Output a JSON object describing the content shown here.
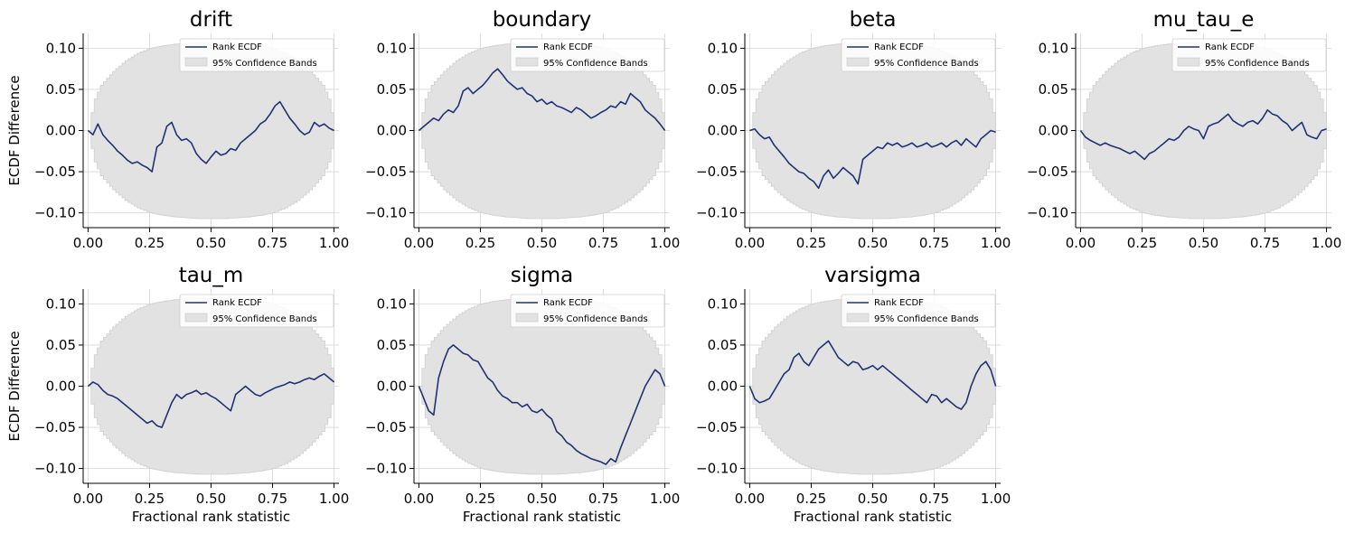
{
  "chart_data": {
    "type": "line",
    "shared": {
      "xlim": [
        -0.02,
        1.02
      ],
      "ylim": [
        -0.118,
        0.118
      ],
      "xticks": [
        0.0,
        0.25,
        0.5,
        0.75,
        1.0
      ],
      "xtick_labels": [
        "0.00",
        "0.25",
        "0.50",
        "0.75",
        "1.00"
      ],
      "yticks": [
        -0.1,
        -0.05,
        0.0,
        0.05,
        0.1
      ],
      "ytick_labels": [
        "−0.10",
        "−0.05",
        "0.00",
        "0.05",
        "0.10"
      ],
      "grid": true,
      "legend_position": "top-right",
      "legend_line_label": "Rank ECDF",
      "legend_band_label": "95% Confidence Bands",
      "line_color": "#1f3374",
      "band_color": "#e2e2e2",
      "confidence_band_halfwidth": [
        [
          0.0,
          0.0
        ],
        [
          0.02,
          0.035
        ],
        [
          0.05,
          0.055
        ],
        [
          0.1,
          0.072
        ],
        [
          0.15,
          0.085
        ],
        [
          0.2,
          0.094
        ],
        [
          0.25,
          0.1
        ],
        [
          0.3,
          0.103
        ],
        [
          0.35,
          0.105
        ],
        [
          0.4,
          0.106
        ],
        [
          0.45,
          0.107
        ],
        [
          0.5,
          0.107
        ],
        [
          0.55,
          0.107
        ],
        [
          0.6,
          0.106
        ],
        [
          0.65,
          0.105
        ],
        [
          0.7,
          0.103
        ],
        [
          0.75,
          0.1
        ],
        [
          0.8,
          0.094
        ],
        [
          0.85,
          0.085
        ],
        [
          0.9,
          0.072
        ],
        [
          0.95,
          0.055
        ],
        [
          0.98,
          0.035
        ],
        [
          1.0,
          0.0
        ]
      ]
    },
    "panels": [
      {
        "title": "drift",
        "ylabel": "ECDF Difference",
        "xlabel": "",
        "x": [
          0.0,
          0.02,
          0.04,
          0.06,
          0.08,
          0.1,
          0.12,
          0.14,
          0.16,
          0.18,
          0.2,
          0.22,
          0.24,
          0.26,
          0.28,
          0.3,
          0.32,
          0.34,
          0.36,
          0.38,
          0.4,
          0.42,
          0.44,
          0.46,
          0.48,
          0.5,
          0.52,
          0.54,
          0.56,
          0.58,
          0.6,
          0.62,
          0.64,
          0.66,
          0.68,
          0.7,
          0.72,
          0.74,
          0.76,
          0.78,
          0.8,
          0.82,
          0.84,
          0.86,
          0.88,
          0.9,
          0.92,
          0.94,
          0.96,
          0.98,
          1.0
        ],
        "y": [
          0.0,
          -0.005,
          0.008,
          -0.005,
          -0.012,
          -0.018,
          -0.025,
          -0.03,
          -0.036,
          -0.04,
          -0.038,
          -0.042,
          -0.045,
          -0.05,
          -0.02,
          -0.015,
          0.005,
          0.01,
          -0.005,
          -0.012,
          -0.01,
          -0.015,
          -0.028,
          -0.035,
          -0.04,
          -0.032,
          -0.025,
          -0.03,
          -0.028,
          -0.022,
          -0.024,
          -0.015,
          -0.01,
          -0.005,
          0.0,
          0.008,
          0.012,
          0.02,
          0.03,
          0.035,
          0.025,
          0.015,
          0.008,
          0.0,
          -0.005,
          -0.002,
          0.01,
          0.005,
          0.008,
          0.003,
          0.0
        ]
      },
      {
        "title": "boundary",
        "ylabel": "",
        "xlabel": "",
        "x": [
          0.0,
          0.02,
          0.04,
          0.06,
          0.08,
          0.1,
          0.12,
          0.14,
          0.16,
          0.18,
          0.2,
          0.22,
          0.24,
          0.26,
          0.28,
          0.3,
          0.32,
          0.34,
          0.36,
          0.38,
          0.4,
          0.42,
          0.44,
          0.46,
          0.48,
          0.5,
          0.52,
          0.54,
          0.56,
          0.58,
          0.6,
          0.62,
          0.64,
          0.66,
          0.68,
          0.7,
          0.72,
          0.74,
          0.76,
          0.78,
          0.8,
          0.82,
          0.84,
          0.86,
          0.88,
          0.9,
          0.92,
          0.94,
          0.96,
          0.98,
          1.0
        ],
        "y": [
          0.0,
          0.005,
          0.01,
          0.015,
          0.012,
          0.02,
          0.025,
          0.022,
          0.03,
          0.048,
          0.052,
          0.045,
          0.05,
          0.055,
          0.062,
          0.07,
          0.075,
          0.068,
          0.06,
          0.055,
          0.05,
          0.052,
          0.045,
          0.042,
          0.035,
          0.038,
          0.032,
          0.035,
          0.03,
          0.028,
          0.025,
          0.022,
          0.028,
          0.025,
          0.02,
          0.015,
          0.018,
          0.022,
          0.025,
          0.03,
          0.028,
          0.035,
          0.032,
          0.045,
          0.04,
          0.035,
          0.025,
          0.02,
          0.015,
          0.008,
          0.0
        ]
      },
      {
        "title": "beta",
        "ylabel": "",
        "xlabel": "",
        "x": [
          0.0,
          0.02,
          0.04,
          0.06,
          0.08,
          0.1,
          0.12,
          0.14,
          0.16,
          0.18,
          0.2,
          0.22,
          0.24,
          0.26,
          0.28,
          0.3,
          0.32,
          0.34,
          0.36,
          0.38,
          0.4,
          0.42,
          0.44,
          0.46,
          0.48,
          0.5,
          0.52,
          0.54,
          0.56,
          0.58,
          0.6,
          0.62,
          0.64,
          0.66,
          0.68,
          0.7,
          0.72,
          0.74,
          0.76,
          0.78,
          0.8,
          0.82,
          0.84,
          0.86,
          0.88,
          0.9,
          0.92,
          0.94,
          0.96,
          0.98,
          1.0
        ],
        "y": [
          0.0,
          0.002,
          -0.005,
          -0.01,
          -0.008,
          -0.018,
          -0.025,
          -0.032,
          -0.04,
          -0.045,
          -0.05,
          -0.052,
          -0.058,
          -0.062,
          -0.07,
          -0.055,
          -0.048,
          -0.058,
          -0.052,
          -0.045,
          -0.05,
          -0.055,
          -0.065,
          -0.035,
          -0.03,
          -0.025,
          -0.02,
          -0.022,
          -0.015,
          -0.018,
          -0.015,
          -0.02,
          -0.018,
          -0.015,
          -0.02,
          -0.018,
          -0.015,
          -0.02,
          -0.018,
          -0.015,
          -0.02,
          -0.015,
          -0.012,
          -0.018,
          -0.01,
          -0.015,
          -0.02,
          -0.01,
          -0.005,
          0.0,
          -0.002
        ]
      },
      {
        "title": "mu_tau_e",
        "ylabel": "",
        "xlabel": "",
        "x": [
          0.0,
          0.02,
          0.04,
          0.06,
          0.08,
          0.1,
          0.12,
          0.14,
          0.16,
          0.18,
          0.2,
          0.22,
          0.24,
          0.26,
          0.28,
          0.3,
          0.32,
          0.34,
          0.36,
          0.38,
          0.4,
          0.42,
          0.44,
          0.46,
          0.48,
          0.5,
          0.52,
          0.54,
          0.56,
          0.58,
          0.6,
          0.62,
          0.64,
          0.66,
          0.68,
          0.7,
          0.72,
          0.74,
          0.76,
          0.78,
          0.8,
          0.82,
          0.84,
          0.86,
          0.88,
          0.9,
          0.92,
          0.94,
          0.96,
          0.98,
          1.0
        ],
        "y": [
          0.0,
          -0.008,
          -0.012,
          -0.015,
          -0.018,
          -0.015,
          -0.018,
          -0.02,
          -0.022,
          -0.025,
          -0.028,
          -0.025,
          -0.03,
          -0.035,
          -0.028,
          -0.025,
          -0.02,
          -0.015,
          -0.01,
          -0.012,
          -0.008,
          0.0,
          0.005,
          0.002,
          0.0,
          -0.01,
          0.005,
          0.008,
          0.01,
          0.015,
          0.02,
          0.012,
          0.008,
          0.005,
          0.01,
          0.012,
          0.008,
          0.015,
          0.025,
          0.02,
          0.018,
          0.012,
          0.008,
          0.0,
          0.005,
          0.01,
          -0.005,
          -0.008,
          -0.01,
          0.0,
          0.002
        ]
      },
      {
        "title": "tau_m",
        "ylabel": "ECDF Difference",
        "xlabel": "Fractional rank statistic",
        "x": [
          0.0,
          0.02,
          0.04,
          0.06,
          0.08,
          0.1,
          0.12,
          0.14,
          0.16,
          0.18,
          0.2,
          0.22,
          0.24,
          0.26,
          0.28,
          0.3,
          0.32,
          0.34,
          0.36,
          0.38,
          0.4,
          0.42,
          0.44,
          0.46,
          0.48,
          0.5,
          0.52,
          0.54,
          0.56,
          0.58,
          0.6,
          0.62,
          0.64,
          0.66,
          0.68,
          0.7,
          0.72,
          0.74,
          0.76,
          0.78,
          0.8,
          0.82,
          0.84,
          0.86,
          0.88,
          0.9,
          0.92,
          0.94,
          0.96,
          0.98,
          1.0
        ],
        "y": [
          0.0,
          0.005,
          0.002,
          -0.005,
          -0.01,
          -0.012,
          -0.015,
          -0.02,
          -0.025,
          -0.03,
          -0.035,
          -0.04,
          -0.045,
          -0.042,
          -0.048,
          -0.05,
          -0.035,
          -0.02,
          -0.01,
          -0.015,
          -0.01,
          -0.008,
          -0.005,
          -0.01,
          -0.008,
          -0.012,
          -0.015,
          -0.02,
          -0.025,
          -0.03,
          -0.01,
          -0.005,
          0.0,
          -0.005,
          -0.01,
          -0.012,
          -0.008,
          -0.005,
          -0.002,
          0.0,
          0.002,
          0.005,
          0.003,
          0.005,
          0.008,
          0.01,
          0.008,
          0.012,
          0.015,
          0.01,
          0.005
        ]
      },
      {
        "title": "sigma",
        "ylabel": "",
        "xlabel": "Fractional rank statistic",
        "x": [
          0.0,
          0.02,
          0.04,
          0.06,
          0.08,
          0.1,
          0.12,
          0.14,
          0.16,
          0.18,
          0.2,
          0.22,
          0.24,
          0.26,
          0.28,
          0.3,
          0.32,
          0.34,
          0.36,
          0.38,
          0.4,
          0.42,
          0.44,
          0.46,
          0.48,
          0.5,
          0.52,
          0.54,
          0.56,
          0.58,
          0.6,
          0.62,
          0.64,
          0.66,
          0.68,
          0.7,
          0.72,
          0.74,
          0.76,
          0.78,
          0.8,
          0.82,
          0.84,
          0.86,
          0.88,
          0.9,
          0.92,
          0.94,
          0.96,
          0.98,
          1.0
        ],
        "y": [
          0.0,
          -0.015,
          -0.03,
          -0.035,
          0.01,
          0.03,
          0.045,
          0.05,
          0.045,
          0.04,
          0.038,
          0.032,
          0.03,
          0.02,
          0.01,
          0.005,
          -0.005,
          -0.012,
          -0.015,
          -0.02,
          -0.02,
          -0.025,
          -0.022,
          -0.03,
          -0.032,
          -0.028,
          -0.035,
          -0.04,
          -0.055,
          -0.06,
          -0.068,
          -0.072,
          -0.078,
          -0.082,
          -0.085,
          -0.088,
          -0.09,
          -0.092,
          -0.095,
          -0.088,
          -0.092,
          -0.075,
          -0.06,
          -0.045,
          -0.03,
          -0.015,
          0.0,
          0.01,
          0.02,
          0.015,
          0.0
        ]
      },
      {
        "title": "varsigma",
        "ylabel": "",
        "xlabel": "Fractional rank statistic",
        "x": [
          0.0,
          0.02,
          0.04,
          0.06,
          0.08,
          0.1,
          0.12,
          0.14,
          0.16,
          0.18,
          0.2,
          0.22,
          0.24,
          0.26,
          0.28,
          0.3,
          0.32,
          0.34,
          0.36,
          0.38,
          0.4,
          0.42,
          0.44,
          0.46,
          0.48,
          0.5,
          0.52,
          0.54,
          0.56,
          0.58,
          0.6,
          0.62,
          0.64,
          0.66,
          0.68,
          0.7,
          0.72,
          0.74,
          0.76,
          0.78,
          0.8,
          0.82,
          0.84,
          0.86,
          0.88,
          0.9,
          0.92,
          0.94,
          0.96,
          0.98,
          1.0
        ],
        "y": [
          0.0,
          -0.015,
          -0.02,
          -0.018,
          -0.015,
          -0.005,
          0.005,
          0.015,
          0.02,
          0.035,
          0.04,
          0.03,
          0.025,
          0.035,
          0.045,
          0.05,
          0.055,
          0.045,
          0.035,
          0.03,
          0.025,
          0.03,
          0.028,
          0.02,
          0.022,
          0.025,
          0.02,
          0.025,
          0.02,
          0.015,
          0.01,
          0.005,
          0.0,
          -0.005,
          -0.01,
          -0.015,
          -0.02,
          -0.01,
          -0.012,
          -0.02,
          -0.015,
          -0.02,
          -0.025,
          -0.028,
          -0.02,
          0.0,
          0.015,
          0.025,
          0.03,
          0.02,
          0.0
        ]
      }
    ]
  }
}
